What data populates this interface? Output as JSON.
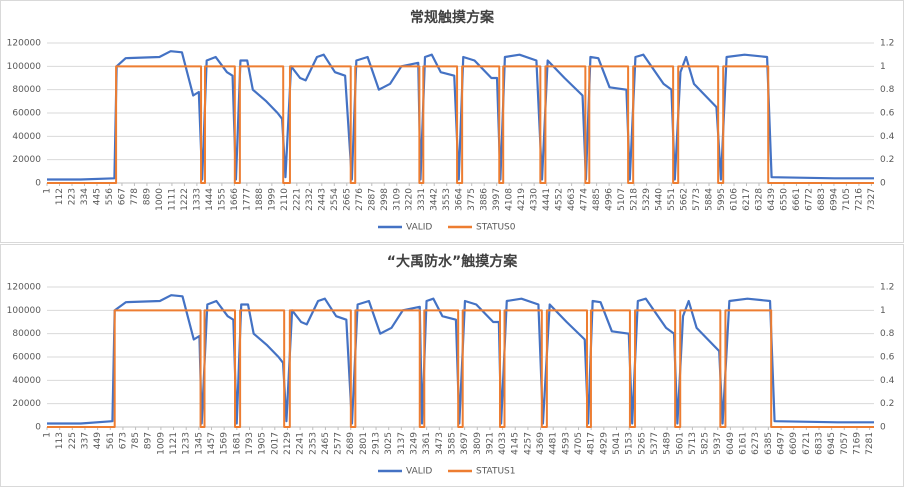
{
  "chart_data": [
    {
      "type": "line",
      "title": "常规触摸方案",
      "xlim": [
        1,
        7350
      ],
      "xticks": [
        1,
        112,
        223,
        334,
        445,
        556,
        667,
        778,
        889,
        1000,
        1111,
        1222,
        1333,
        1444,
        1555,
        1666,
        1777,
        1888,
        1999,
        2110,
        2221,
        2332,
        2443,
        2554,
        2665,
        2776,
        2887,
        2998,
        3109,
        3220,
        3331,
        3442,
        3553,
        3664,
        3775,
        3886,
        3997,
        4108,
        4219,
        4330,
        4441,
        4552,
        4663,
        4774,
        4885,
        4996,
        5107,
        5218,
        5329,
        5440,
        5551,
        5662,
        5773,
        5884,
        5995,
        6106,
        6217,
        6328,
        6439,
        6550,
        6661,
        6772,
        6883,
        6994,
        7105,
        7216,
        7327
      ],
      "ylim": [
        0,
        120000
      ],
      "yticks": [
        0,
        20000,
        40000,
        60000,
        80000,
        100000,
        120000
      ],
      "y2lim": [
        0,
        1.2
      ],
      "y2ticks": [
        0,
        0.2,
        0.4,
        0.6,
        0.8,
        1,
        1.2
      ],
      "grid": true,
      "series": [
        {
          "name": "VALID",
          "color": "#4472c4",
          "x": [
            1,
            300,
            600,
            620,
            700,
            1000,
            1100,
            1200,
            1300,
            1350,
            1380,
            1420,
            1500,
            1600,
            1650,
            1680,
            1720,
            1780,
            1830,
            1950,
            2050,
            2090,
            2120,
            2170,
            2250,
            2300,
            2400,
            2460,
            2560,
            2650,
            2710,
            2750,
            2850,
            2950,
            3050,
            3150,
            3300,
            3320,
            3360,
            3420,
            3500,
            3620,
            3660,
            3700,
            3800,
            3950,
            4000,
            4030,
            4070,
            4200,
            4350,
            4400,
            4450,
            4600,
            4760,
            4790,
            4830,
            4900,
            5000,
            5150,
            5180,
            5230,
            5300,
            5480,
            5550,
            5580,
            5630,
            5680,
            5750,
            5850,
            5950,
            5990,
            6040,
            6200,
            6400,
            6440,
            7000,
            7350
          ],
          "values": [
            3000,
            3000,
            4000,
            100000,
            107000,
            108000,
            113000,
            112000,
            75000,
            78000,
            3000,
            105000,
            108000,
            95000,
            92000,
            3000,
            105000,
            105000,
            80000,
            70000,
            60000,
            55000,
            5000,
            100000,
            90000,
            88000,
            108000,
            110000,
            95000,
            92000,
            3000,
            105000,
            108000,
            80000,
            85000,
            100000,
            103000,
            3000,
            108000,
            110000,
            95000,
            92000,
            3000,
            108000,
            105000,
            90000,
            90000,
            3000,
            108000,
            110000,
            105000,
            3000,
            105000,
            90000,
            75000,
            3000,
            108000,
            107000,
            82000,
            80000,
            3000,
            108000,
            110000,
            85000,
            80000,
            3000,
            95000,
            108000,
            85000,
            75000,
            65000,
            3000,
            108000,
            110000,
            108000,
            5000,
            4000,
            4000
          ]
        },
        {
          "name": "STATUS0",
          "color": "#ed7d31",
          "axis": "y2",
          "x": [
            1,
            615,
            615,
            1370,
            1370,
            1405,
            1405,
            1670,
            1670,
            1715,
            1715,
            2100,
            2100,
            2160,
            2160,
            2700,
            2700,
            2740,
            2740,
            3310,
            3310,
            3345,
            3345,
            3645,
            3645,
            3690,
            3690,
            4020,
            4020,
            4055,
            4055,
            4385,
            4385,
            4430,
            4430,
            4785,
            4785,
            4820,
            4820,
            5165,
            5165,
            5210,
            5210,
            5565,
            5565,
            5610,
            5610,
            5965,
            5965,
            6010,
            6010,
            6410,
            6410,
            7350
          ],
          "values": [
            0,
            0,
            1,
            1,
            0,
            0,
            1,
            1,
            0,
            0,
            1,
            1,
            0,
            0,
            1,
            1,
            0,
            0,
            1,
            1,
            0,
            0,
            1,
            1,
            0,
            0,
            1,
            1,
            0,
            0,
            1,
            1,
            0,
            0,
            1,
            1,
            0,
            0,
            1,
            1,
            0,
            0,
            1,
            1,
            0,
            0,
            1,
            1,
            0,
            0,
            1,
            1,
            0,
            0
          ]
        }
      ]
    },
    {
      "type": "line",
      "title": "“大禹防水”触摸方案",
      "xlim": [
        1,
        7320
      ],
      "xticks": [
        1,
        113,
        225,
        337,
        449,
        561,
        673,
        785,
        897,
        1009,
        1121,
        1233,
        1345,
        1457,
        1569,
        1681,
        1793,
        1905,
        2017,
        2129,
        2241,
        2353,
        2465,
        2577,
        2689,
        2801,
        2913,
        3025,
        3137,
        3249,
        3361,
        3473,
        3585,
        3697,
        3809,
        3921,
        4033,
        4145,
        4257,
        4369,
        4481,
        4593,
        4705,
        4817,
        4929,
        5041,
        5153,
        5265,
        5377,
        5489,
        5601,
        5713,
        5825,
        5937,
        6049,
        6161,
        6273,
        6385,
        6497,
        6609,
        6721,
        6833,
        6945,
        7057,
        7169,
        7281
      ],
      "ylim": [
        0,
        120000
      ],
      "yticks": [
        0,
        20000,
        40000,
        60000,
        80000,
        100000,
        120000
      ],
      "y2lim": [
        0,
        1.2
      ],
      "y2ticks": [
        0,
        0.2,
        0.4,
        0.6,
        0.8,
        1,
        1.2
      ],
      "grid": true,
      "series": [
        {
          "name": "VALID",
          "color": "#4472c4",
          "x": [
            1,
            300,
            580,
            600,
            700,
            1000,
            1100,
            1200,
            1300,
            1350,
            1370,
            1420,
            1500,
            1600,
            1650,
            1680,
            1720,
            1780,
            1830,
            1950,
            2050,
            2090,
            2120,
            2170,
            2250,
            2300,
            2400,
            2460,
            2560,
            2650,
            2700,
            2750,
            2850,
            2950,
            3050,
            3150,
            3300,
            3320,
            3360,
            3420,
            3500,
            3620,
            3650,
            3700,
            3800,
            3950,
            4000,
            4020,
            4070,
            4200,
            4350,
            4390,
            4450,
            4600,
            4760,
            4790,
            4830,
            4900,
            5000,
            5150,
            5180,
            5230,
            5300,
            5480,
            5550,
            5580,
            5630,
            5680,
            5750,
            5850,
            5950,
            5980,
            6040,
            6200,
            6400,
            6440,
            7000,
            7320
          ],
          "values": [
            3000,
            3000,
            5000,
            100000,
            107000,
            108000,
            113000,
            112000,
            75000,
            78000,
            3000,
            105000,
            108000,
            95000,
            92000,
            3000,
            105000,
            105000,
            80000,
            70000,
            60000,
            55000,
            5000,
            100000,
            90000,
            88000,
            108000,
            110000,
            95000,
            92000,
            3000,
            105000,
            108000,
            80000,
            85000,
            100000,
            103000,
            3000,
            108000,
            110000,
            95000,
            92000,
            3000,
            108000,
            105000,
            90000,
            90000,
            3000,
            108000,
            110000,
            105000,
            3000,
            105000,
            90000,
            75000,
            3000,
            108000,
            107000,
            82000,
            80000,
            3000,
            108000,
            110000,
            85000,
            80000,
            3000,
            95000,
            108000,
            85000,
            75000,
            65000,
            3000,
            108000,
            110000,
            108000,
            5000,
            4000,
            4000
          ]
        },
        {
          "name": "STATUS1",
          "color": "#ed7d31",
          "axis": "y2",
          "x": [
            1,
            600,
            600,
            1360,
            1360,
            1395,
            1395,
            1665,
            1665,
            1710,
            1710,
            2100,
            2100,
            2150,
            2150,
            2690,
            2690,
            2730,
            2730,
            3300,
            3300,
            3340,
            3340,
            3640,
            3640,
            3680,
            3680,
            4010,
            4010,
            4050,
            4050,
            4380,
            4380,
            4425,
            4425,
            4780,
            4780,
            4815,
            4815,
            5160,
            5160,
            5205,
            5205,
            5560,
            5560,
            5605,
            5605,
            5960,
            5960,
            6005,
            6005,
            6410,
            6410,
            7320
          ],
          "values": [
            0,
            0,
            1,
            1,
            0,
            0,
            1,
            1,
            0,
            0,
            1,
            1,
            0,
            0,
            1,
            1,
            0,
            0,
            1,
            1,
            0,
            0,
            1,
            1,
            0,
            0,
            1,
            1,
            0,
            0,
            1,
            1,
            0,
            0,
            1,
            1,
            0,
            0,
            1,
            1,
            0,
            0,
            1,
            1,
            0,
            0,
            1,
            1,
            0,
            0,
            1,
            1,
            0,
            0
          ]
        }
      ]
    }
  ]
}
